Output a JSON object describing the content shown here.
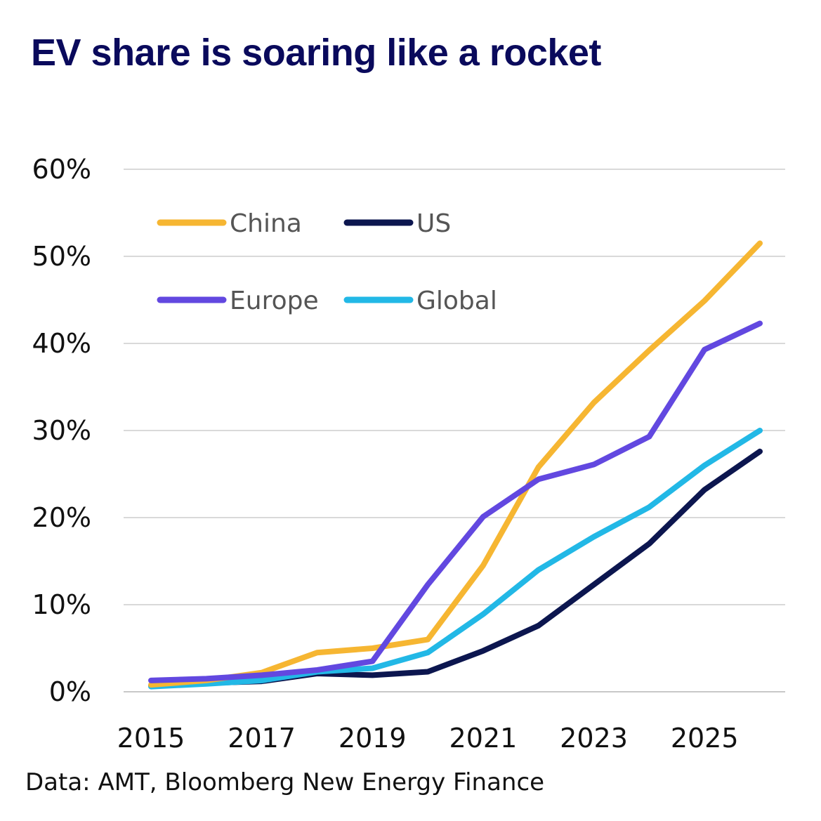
{
  "title": "EV share is soaring like a rocket",
  "source": "Data: AMT, Bloomberg New Energy Finance",
  "chart_data": {
    "type": "line",
    "title": "EV share is soaring like a rocket",
    "xlabel": "",
    "ylabel": "",
    "x": [
      2015,
      2016,
      2017,
      2018,
      2019,
      2020,
      2021,
      2022,
      2023,
      2024,
      2025,
      2026
    ],
    "x_ticks": [
      "2015",
      "2017",
      "2019",
      "2021",
      "2023",
      "2025"
    ],
    "y_ticks": [
      "0%",
      "10%",
      "20%",
      "30%",
      "40%",
      "50%",
      "60%"
    ],
    "ylim": [
      0,
      60
    ],
    "grid": true,
    "legend_placement": "top-left",
    "series": [
      {
        "name": "China",
        "color": "#f6b632",
        "values": [
          0.8,
          1.3,
          2.2,
          4.5,
          5.0,
          6.0,
          14.5,
          25.8,
          33.2,
          39.2,
          44.9,
          51.5
        ]
      },
      {
        "name": "US",
        "color": "#0c164f",
        "values": [
          0.7,
          1.0,
          1.2,
          2.1,
          1.9,
          2.3,
          4.7,
          7.6,
          12.3,
          17.0,
          23.2,
          27.6
        ]
      },
      {
        "name": "Europe",
        "color": "#6248e0",
        "values": [
          1.3,
          1.5,
          1.9,
          2.5,
          3.5,
          12.3,
          20.1,
          24.4,
          26.1,
          29.3,
          39.3,
          42.3
        ]
      },
      {
        "name": "Global",
        "color": "#22b8e6",
        "values": [
          0.6,
          0.9,
          1.3,
          2.3,
          2.7,
          4.5,
          8.9,
          14.0,
          17.8,
          21.2,
          26.0,
          30.0
        ]
      }
    ]
  }
}
